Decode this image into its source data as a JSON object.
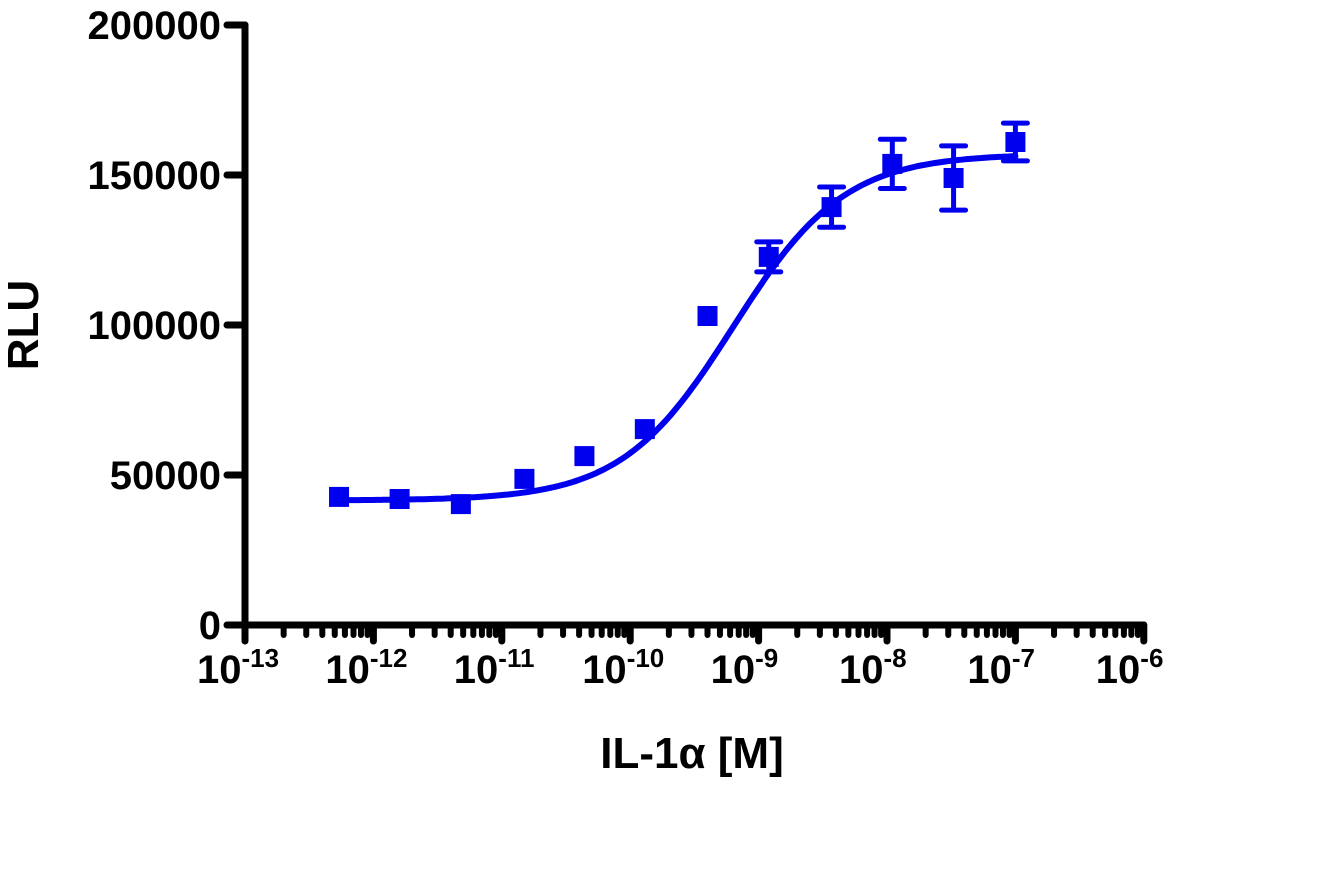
{
  "chart_data": {
    "type": "scatter",
    "title": "",
    "xlabel": "IL-1α [M]",
    "ylabel": "RLU",
    "xscale": "log",
    "xlim": [
      1e-13,
      1e-06
    ],
    "ylim": [
      0,
      200000
    ],
    "x_ticks": [
      {
        "base": "10",
        "exp": "-13",
        "value": 1e-13
      },
      {
        "base": "10",
        "exp": "-12",
        "value": 1e-12
      },
      {
        "base": "10",
        "exp": "-11",
        "value": 1e-11
      },
      {
        "base": "10",
        "exp": "-10",
        "value": 1e-10
      },
      {
        "base": "10",
        "exp": "-9",
        "value": 1e-09
      },
      {
        "base": "10",
        "exp": "-8",
        "value": 1e-08
      },
      {
        "base": "10",
        "exp": "-7",
        "value": 1e-07
      },
      {
        "base": "10",
        "exp": "-6",
        "value": 1e-06
      }
    ],
    "y_ticks": [
      "0",
      "50000",
      "100000",
      "150000",
      "200000"
    ],
    "y_tick_values": [
      0,
      50000,
      100000,
      150000,
      200000
    ],
    "grid": false,
    "legend": null,
    "series": [
      {
        "name": "IL-1α",
        "color": "#0000ee",
        "marker": "square",
        "x": [
          5.4e-13,
          1.6e-12,
          4.8e-12,
          1.5e-11,
          4.4e-11,
          1.3e-10,
          4e-10,
          1.2e-09,
          3.7e-09,
          1.1e-08,
          3.3e-08,
          1e-07
        ],
        "y": [
          42700,
          42000,
          40300,
          48700,
          56300,
          65300,
          103000,
          122700,
          139300,
          153700,
          149000,
          161000
        ],
        "error": [
          0,
          0,
          0,
          0,
          0,
          0,
          0,
          5000,
          6700,
          8200,
          10700,
          6300
        ]
      }
    ],
    "fit": {
      "model": "sigmoidal dose-response",
      "bottom": 41500,
      "top": 157000,
      "logEC50": -9.2,
      "hill": 1.0,
      "x_range": [
        5.4e-13,
        1e-07
      ]
    }
  }
}
